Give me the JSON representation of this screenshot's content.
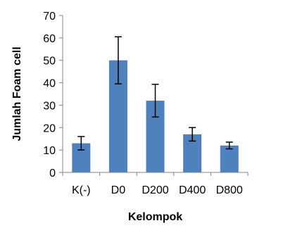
{
  "chart_data": {
    "type": "bar",
    "title": "",
    "xlabel": "Kelompok",
    "ylabel": "Jumlah Foam cell",
    "categories": [
      "K(-)",
      "D0",
      "D200",
      "D400",
      "D800"
    ],
    "values": [
      13,
      50,
      32,
      17,
      12
    ],
    "error": [
      3,
      10.5,
      7.3,
      3,
      1.5
    ],
    "ylim": [
      0,
      70
    ],
    "yticks": [
      0,
      10,
      20,
      30,
      40,
      50,
      60,
      70
    ],
    "grid": false,
    "legend": "none",
    "bar_color": "#4F81BD",
    "error_color": "#000000"
  }
}
